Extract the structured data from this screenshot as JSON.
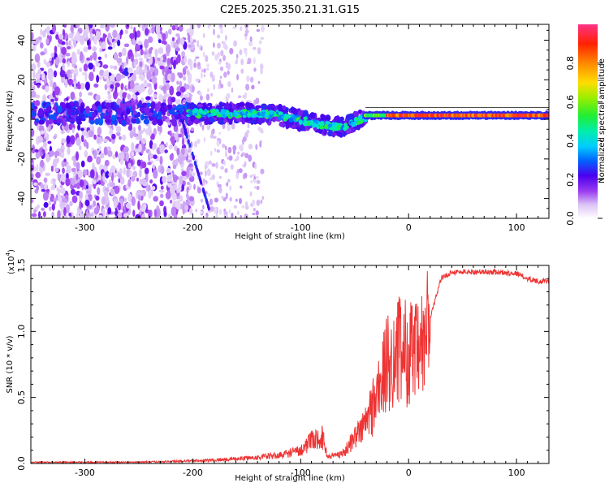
{
  "chart_data": [
    {
      "type": "heatmap",
      "title": "C2E5.2025.350.21.31.G15",
      "xlabel": "Height of straight line (km)",
      "ylabel": "Frequency (Hz)",
      "xlim": [
        -350,
        130
      ],
      "ylim": [
        -50,
        48
      ],
      "xticks": [
        -300,
        -200,
        -100,
        0,
        100
      ],
      "yticks": [
        -40,
        -20,
        0,
        20,
        40
      ],
      "colorbar": {
        "label": "Normalized spectral amplitude",
        "range": [
          0,
          1
        ],
        "ticks": [
          "0.0",
          "0.2",
          "0.4",
          "0.6",
          "0.8"
        ]
      },
      "features": [
        {
          "name": "broadband noise",
          "x_range": [
            -350,
            -200
          ],
          "freq_range": [
            -50,
            48
          ],
          "amplitude": 0.15
        },
        {
          "name": "central band",
          "x_range": [
            -205,
            -40
          ],
          "freq_center": 2,
          "amplitude": 0.35
        },
        {
          "name": "carrier line",
          "x_range": [
            -40,
            130
          ],
          "freq": 2,
          "amplitude": 0.95
        }
      ]
    },
    {
      "type": "line",
      "title": "",
      "xlabel": "Height of straight line (km)",
      "ylabel": "SNR (10 * v/v)",
      "yscale_label": "(x10",
      "yscale_exp": "4",
      "xlim": [
        -350,
        130
      ],
      "ylim": [
        0,
        1.5
      ],
      "xticks": [
        -300,
        -200,
        -100,
        0,
        100
      ],
      "yticks": [
        "0.0",
        "0.5",
        "1.0",
        "1.5"
      ],
      "series": [
        {
          "name": "SNR",
          "color": "#ee3333",
          "x": [
            -350,
            -300,
            -250,
            -200,
            -170,
            -150,
            -120,
            -100,
            -90,
            -80,
            -75,
            -60,
            -50,
            -40,
            -30,
            -20,
            -10,
            0,
            10,
            20,
            30,
            40,
            60,
            80,
            100,
            110,
            120,
            130
          ],
          "y": [
            0.01,
            0.01,
            0.01,
            0.02,
            0.03,
            0.04,
            0.06,
            0.1,
            0.17,
            0.2,
            0.05,
            0.08,
            0.2,
            0.3,
            0.5,
            0.75,
            0.85,
            0.85,
            0.8,
            1.1,
            1.4,
            1.45,
            1.45,
            1.45,
            1.44,
            1.4,
            1.38,
            1.38
          ]
        }
      ]
    }
  ],
  "colors": {
    "line": "#ee3333",
    "background": "#ffffff"
  }
}
